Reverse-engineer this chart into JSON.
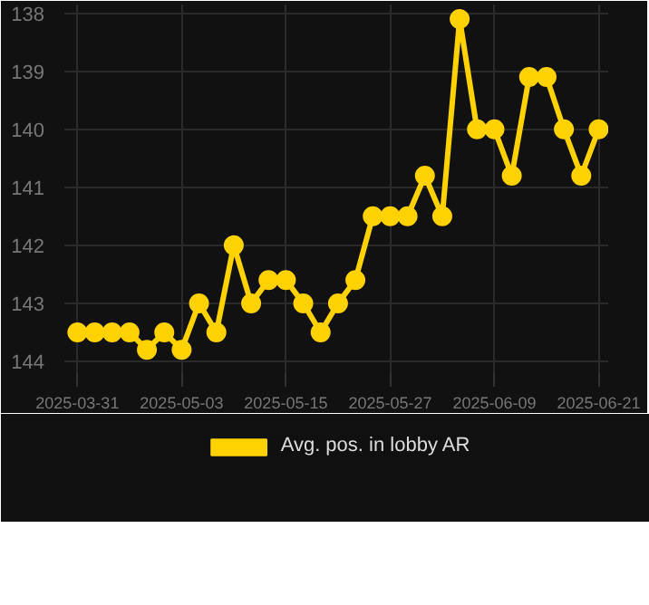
{
  "chart_data": {
    "type": "line",
    "categories": [
      "2025-03-31",
      null,
      null,
      null,
      null,
      null,
      "2025-05-03",
      null,
      null,
      null,
      null,
      null,
      "2025-05-15",
      null,
      null,
      null,
      null,
      null,
      "2025-05-27",
      null,
      null,
      null,
      null,
      null,
      "2025-06-09",
      null,
      null,
      null,
      null,
      null,
      "2025-06-21"
    ],
    "series": [
      {
        "name": "Avg. pos. in lobby AR",
        "color": "#ffd200",
        "values": [
          143.5,
          143.5,
          143.5,
          143.5,
          143.8,
          143.5,
          143.8,
          143.0,
          143.5,
          142.0,
          143.0,
          142.6,
          142.6,
          143.0,
          143.5,
          143.0,
          142.6,
          141.5,
          141.5,
          141.5,
          140.8,
          141.5,
          138.1,
          140.0,
          140.0,
          140.8,
          139.1,
          139.1,
          140.0,
          140.8,
          140.0
        ]
      }
    ],
    "ylim": [
      144.25,
      137.85
    ],
    "yticks": [
      138,
      139,
      140,
      141,
      142,
      143,
      144
    ],
    "grid": true,
    "legend": "bottom",
    "marker": "circle",
    "line_style": "solid"
  }
}
